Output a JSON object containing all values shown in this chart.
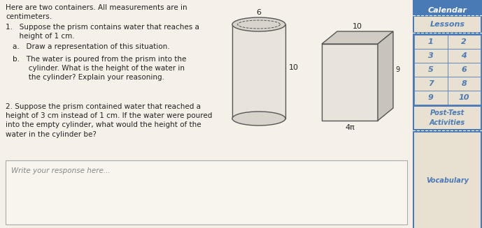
{
  "bg_color": "#f5f0e8",
  "sidebar_bg": "#4a7ab5",
  "sidebar_cell_bg": "#e8e0d0",
  "main_bg": "#f5f0e8",
  "text_color": "#222222",
  "sidebar_text_color": "#4a7ab5",
  "header_text": "Calendar",
  "lessons_text": "Lessons",
  "lesson_numbers": [
    "1",
    "2",
    "3",
    "4",
    "5",
    "6",
    "7",
    "8",
    "9",
    "10"
  ],
  "post_test_text": "Post-Test\nActivities",
  "vocab_text": "Vocabulary",
  "title_text": "Here are two containers. All measurements are in\ncentimeters.",
  "q1_text": "1.   Suppose the prism contains water that reaches a\n      height of 1 cm.",
  "q1a_text": "a.   Draw a representation of this situation.",
  "q1b_text": "b.   The water is poured from the prism into the\n       cylinder. What is the height of the water in\n       the cylinder? Explain your reasoning.",
  "q2_text": "2. Suppose the prism contained water that reached a\nheight of 3 cm instead of 1 cm. If the water were poured\ninto the empty cylinder, what would the height of the\nwater in the cylinder be?",
  "response_placeholder": "Write your response here...",
  "cylinder_diameter_label": "6",
  "cylinder_height_label": "10",
  "prism_width_label": "10",
  "prism_depth_label": "4π",
  "prism_small_label": "9",
  "response_box_bg": "#f8f5ee",
  "response_box_border": "#aaaaaa"
}
